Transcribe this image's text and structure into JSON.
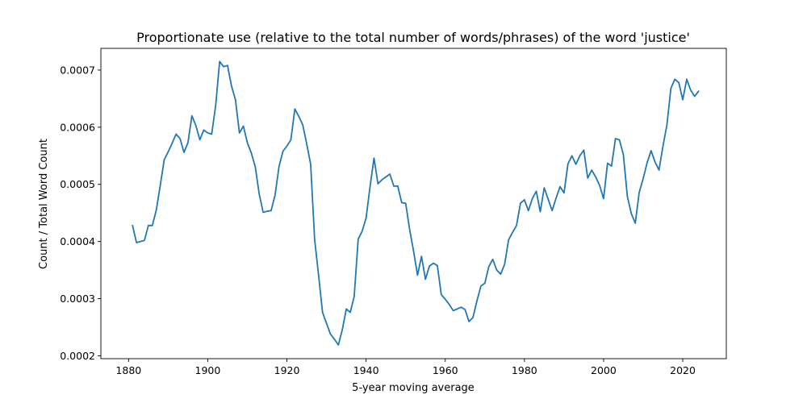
{
  "chart_data": {
    "type": "line",
    "title": "Proportionate use (relative to the total number of words/phrases) of the word 'justice'",
    "xlabel": "5-year moving average",
    "ylabel": "Count / Total Word Count",
    "xlim": [
      1873,
      2031
    ],
    "ylim": [
      0.000195,
      0.000738
    ],
    "xticks": [
      1880,
      1900,
      1920,
      1940,
      1960,
      1980,
      2000,
      2020
    ],
    "yticks": [
      0.0002,
      0.0003,
      0.0004,
      0.0005,
      0.0006,
      0.0007
    ],
    "ytick_labels": [
      "0.0002",
      "0.0003",
      "0.0004",
      "0.0005",
      "0.0006",
      "0.0007"
    ],
    "grid": false,
    "color": "#1f77b4",
    "series": [
      {
        "x": [
          1881,
          1882,
          1883,
          1884,
          1885,
          1886,
          1887,
          1888,
          1889,
          1890,
          1891,
          1892,
          1893,
          1894,
          1895,
          1896,
          1897,
          1898,
          1899,
          1900,
          1901,
          1902,
          1903,
          1904,
          1905,
          1906,
          1907,
          1908,
          1909,
          1910,
          1911,
          1912,
          1913,
          1914,
          1915,
          1916,
          1917,
          1918,
          1919,
          1920,
          1921,
          1922,
          1923,
          1924,
          1925,
          1926,
          1927,
          1928,
          1929,
          1930,
          1931,
          1932,
          1933,
          1934,
          1935,
          1936,
          1937,
          1938,
          1939,
          1940,
          1941,
          1942,
          1943,
          1944,
          1945,
          1946,
          1947,
          1948,
          1949,
          1950,
          1951,
          1952,
          1953,
          1954,
          1955,
          1956,
          1957,
          1958,
          1959,
          1960,
          1961,
          1962,
          1963,
          1964,
          1965,
          1966,
          1967,
          1968,
          1969,
          1970,
          1971,
          1972,
          1973,
          1974,
          1975,
          1976,
          1977,
          1978,
          1979,
          1980,
          1981,
          1982,
          1983,
          1984,
          1985,
          1986,
          1987,
          1988,
          1989,
          1990,
          1991,
          1992,
          1993,
          1994,
          1995,
          1996,
          1997,
          1998,
          1999,
          2000,
          2001,
          2002,
          2003,
          2004,
          2005,
          2006,
          2007,
          2008,
          2009,
          2010,
          2011,
          2012,
          2013,
          2014,
          2015,
          2016,
          2017,
          2018,
          2019,
          2020,
          2021,
          2022,
          2023,
          2024
        ],
        "y": [
          0.000428,
          0.000398,
          0.0004,
          0.000402,
          0.000428,
          0.000428,
          0.000455,
          0.000498,
          0.000543,
          0.000557,
          0.000572,
          0.000588,
          0.00058,
          0.000556,
          0.000573,
          0.00062,
          0.000603,
          0.000578,
          0.000595,
          0.00059,
          0.000588,
          0.000638,
          0.000715,
          0.000706,
          0.000708,
          0.000672,
          0.000648,
          0.00059,
          0.000602,
          0.000573,
          0.000555,
          0.000531,
          0.000483,
          0.000451,
          0.000453,
          0.000454,
          0.000481,
          0.000531,
          0.000558,
          0.000567,
          0.000578,
          0.000632,
          0.000619,
          0.000604,
          0.000571,
          0.000535,
          0.000404,
          0.000341,
          0.000276,
          0.000257,
          0.000238,
          0.000229,
          0.000219,
          0.000246,
          0.000282,
          0.000276,
          0.000304,
          0.000404,
          0.000418,
          0.000441,
          0.000496,
          0.000546,
          0.000501,
          0.000508,
          0.000513,
          0.000518,
          0.000497,
          0.000497,
          0.000468,
          0.000467,
          0.000421,
          0.000383,
          0.000341,
          0.000374,
          0.000334,
          0.000357,
          0.000362,
          0.000358,
          0.000307,
          0.000299,
          0.00029,
          0.000279,
          0.000282,
          0.000285,
          0.000281,
          0.00026,
          0.000267,
          0.000296,
          0.000322,
          0.000327,
          0.000356,
          0.000369,
          0.00035,
          0.000343,
          0.00036,
          0.000403,
          0.000416,
          0.000428,
          0.000467,
          0.000473,
          0.000454,
          0.000475,
          0.000488,
          0.000452,
          0.000494,
          0.000474,
          0.000454,
          0.000476,
          0.000496,
          0.000485,
          0.000536,
          0.00055,
          0.000535,
          0.00055,
          0.00056,
          0.000511,
          0.000525,
          0.000513,
          0.000498,
          0.000475,
          0.000537,
          0.000532,
          0.00058,
          0.000578,
          0.000552,
          0.000479,
          0.000449,
          0.000432,
          0.000486,
          0.00051,
          0.000538,
          0.000559,
          0.000539,
          0.000525,
          0.000567,
          0.000604,
          0.000668,
          0.000684,
          0.000678,
          0.000648,
          0.000684,
          0.000665,
          0.000654,
          0.000663
        ]
      }
    ]
  }
}
